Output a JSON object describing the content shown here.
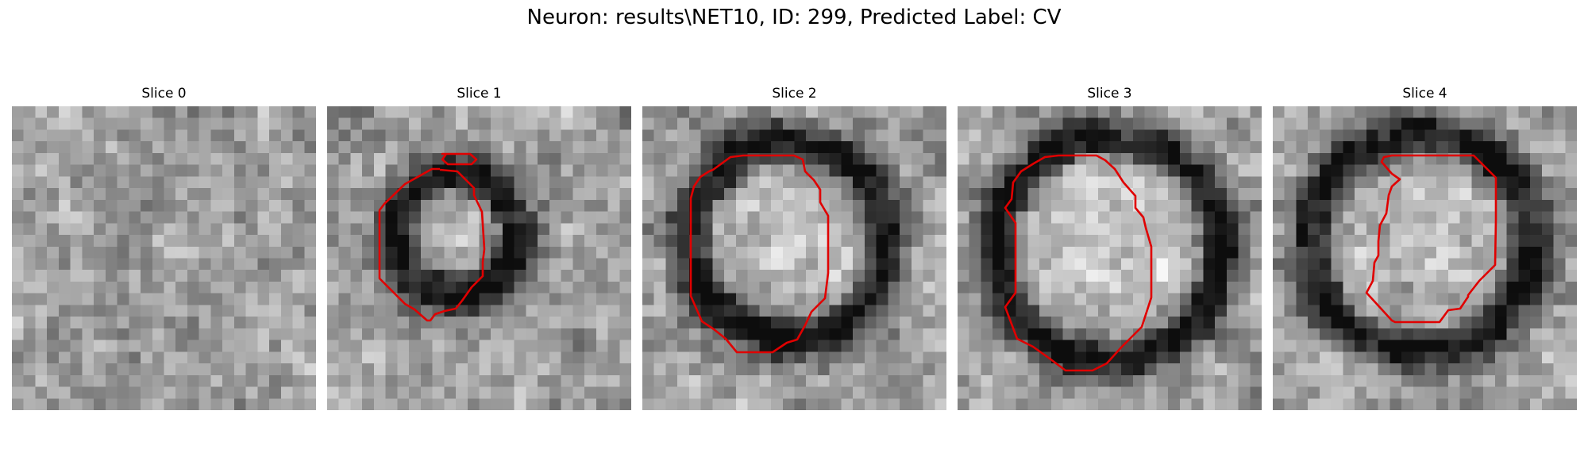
{
  "figure": {
    "title": "Neuron: results\\NET10, ID: 299, Predicted Label: CV",
    "contour_color": "#e00000",
    "colormap": "grayscale",
    "slices": [
      {
        "title": "Slice 0",
        "has_contour": false
      },
      {
        "title": "Slice 1",
        "has_contour": true
      },
      {
        "title": "Slice 2",
        "has_contour": true
      },
      {
        "title": "Slice 3",
        "has_contour": true
      },
      {
        "title": "Slice 4",
        "has_contour": true
      }
    ]
  }
}
